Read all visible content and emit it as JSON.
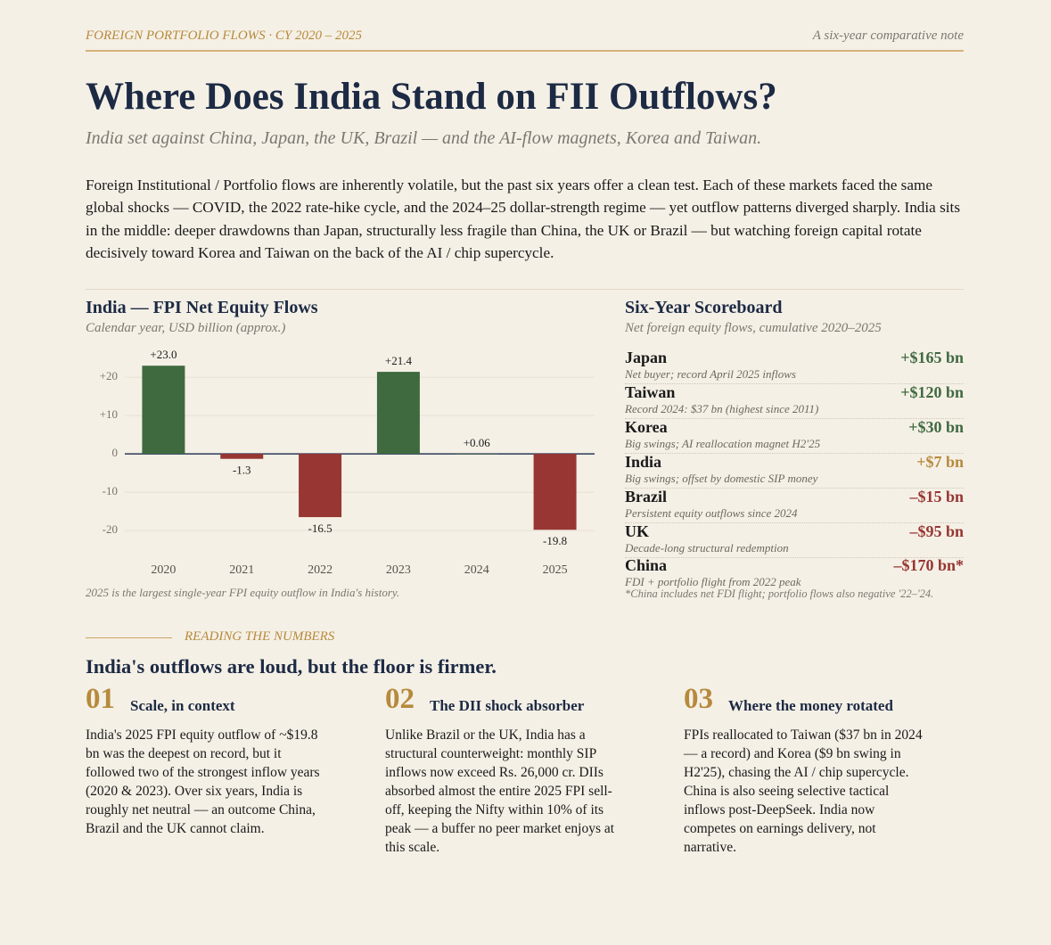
{
  "header": {
    "kicker": "FOREIGN PORTFOLIO FLOWS  ·  CY 2020 – 2025",
    "note": "A six-year comparative note"
  },
  "title": "Where Does India Stand on FII Outflows?",
  "subtitle": "India set against China, Japan, the UK, Brazil — and the AI-flow magnets, Korea and Taiwan.",
  "intro": "Foreign Institutional / Portfolio flows are inherently volatile, but the past six years offer a clean test. Each of these markets faced the same global shocks — COVID, the 2022 rate-hike cycle, and the 2024–25 dollar-strength regime — yet outflow patterns diverged sharply. India sits in the middle: deeper drawdowns than Japan, structurally less fragile than China, the UK or Brazil — but watching foreign capital rotate decisively toward Korea and Taiwan on the back of the AI / chip supercycle.",
  "chart_data": {
    "type": "bar",
    "title": "India — FPI Net Equity Flows",
    "subtitle": "Calendar year, USD billion (approx.)",
    "categories": [
      "2020",
      "2021",
      "2022",
      "2023",
      "2024",
      "2025"
    ],
    "values": [
      23.0,
      -1.3,
      -16.5,
      21.4,
      0.06,
      -19.8
    ],
    "value_labels": [
      "+23.0",
      "-1.3",
      "-16.5",
      "+21.4",
      "+0.06",
      "-19.8"
    ],
    "colors": [
      "#3f6a40",
      "#973632",
      "#973632",
      "#3f6a40",
      "#3f6a40",
      "#973632"
    ],
    "ylim": [
      -25,
      27
    ],
    "yticks": [
      {
        "value": 20,
        "label": "+20"
      },
      {
        "value": 10,
        "label": "+10"
      },
      0,
      -10,
      -20
    ],
    "grid": true,
    "note": "2025 is the largest single-year FPI equity outflow in India's history."
  },
  "scoreboard": {
    "title": "Six-Year Scoreboard",
    "subtitle": "Net foreign equity flows, cumulative 2020–2025",
    "rows": [
      {
        "name": "Japan",
        "desc": "Net buyer; record April 2025 inflows",
        "value": "+$165 bn",
        "color": "#3f6a40"
      },
      {
        "name": "Taiwan",
        "desc": "Record 2024: $37 bn (highest since 2011)",
        "value": "+$120 bn",
        "color": "#3f6a40"
      },
      {
        "name": "Korea",
        "desc": "Big swings; AI reallocation magnet H2'25",
        "value": "+$30 bn",
        "color": "#3f6a40"
      },
      {
        "name": "India",
        "desc": "Big swings; offset by domestic SIP money",
        "value": "+$7 bn",
        "color": "#b68a3c"
      },
      {
        "name": "Brazil",
        "desc": "Persistent equity outflows since 2024",
        "value": "–$15 bn",
        "color": "#973632"
      },
      {
        "name": "UK",
        "desc": "Decade-long structural redemption",
        "value": "–$95 bn",
        "color": "#973632"
      },
      {
        "name": "China",
        "desc": "FDI + portfolio flight from 2022 peak",
        "value": "–$170 bn*",
        "color": "#973632"
      }
    ],
    "footnote": "*China includes net FDI flight; portfolio flows also negative '22–'24."
  },
  "reading": {
    "kicker": "READING THE NUMBERS",
    "heading": "India's outflows are loud, but the floor is firmer.",
    "items": [
      {
        "number": "01",
        "title": "Scale, in context",
        "body": "India's 2025 FPI equity outflow of ~$19.8 bn was the deepest on record, but it followed two of the strongest inflow years (2020 & 2023). Over six years, India is roughly net neutral — an outcome China, Brazil and the UK cannot claim."
      },
      {
        "number": "02",
        "title": "The DII shock absorber",
        "body": "Unlike Brazil or the UK, India has a structural counterweight: monthly SIP inflows now exceed Rs. 26,000 cr. DIIs absorbed almost the entire 2025 FPI sell-off, keeping the Nifty within 10% of its peak — a buffer no peer market enjoys at this scale."
      },
      {
        "number": "03",
        "title": "Where the money rotated",
        "body": "FPIs reallocated to Taiwan ($37 bn in 2024 — a record) and Korea ($9 bn swing in H2'25), chasing the AI / chip supercycle. China is also seeing selective tactical inflows post-DeepSeek. India now competes on earnings delivery, not narrative."
      }
    ]
  }
}
